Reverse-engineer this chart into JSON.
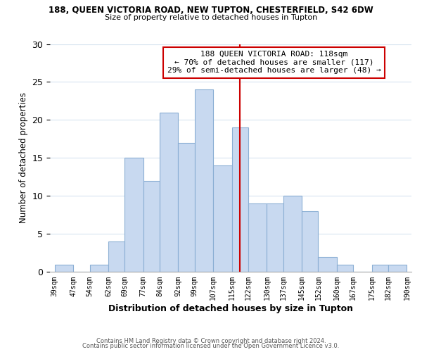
{
  "title1": "188, QUEEN VICTORIA ROAD, NEW TUPTON, CHESTERFIELD, S42 6DW",
  "title2": "Size of property relative to detached houses in Tupton",
  "xlabel": "Distribution of detached houses by size in Tupton",
  "ylabel": "Number of detached properties",
  "bin_edges": [
    39,
    47,
    54,
    62,
    69,
    77,
    84,
    92,
    99,
    107,
    115,
    122,
    130,
    137,
    145,
    152,
    160,
    167,
    175,
    182,
    190
  ],
  "bin_labels": [
    "39sqm",
    "47sqm",
    "54sqm",
    "62sqm",
    "69sqm",
    "77sqm",
    "84sqm",
    "92sqm",
    "99sqm",
    "107sqm",
    "115sqm",
    "122sqm",
    "130sqm",
    "137sqm",
    "145sqm",
    "152sqm",
    "160sqm",
    "167sqm",
    "175sqm",
    "182sqm",
    "190sqm"
  ],
  "counts": [
    1,
    0,
    1,
    4,
    15,
    12,
    21,
    17,
    24,
    14,
    19,
    9,
    9,
    10,
    8,
    2,
    1,
    0,
    1,
    1
  ],
  "bar_color": "#c8d9f0",
  "bar_edgecolor": "#8bafd4",
  "vline_x": 118.5,
  "vline_color": "#cc0000",
  "annotation_line1": "188 QUEEN VICTORIA ROAD: 118sqm",
  "annotation_line2": "← 70% of detached houses are smaller (117)",
  "annotation_line3": "29% of semi-detached houses are larger (48) →",
  "annotation_box_color": "#ffffff",
  "annotation_box_edgecolor": "#cc0000",
  "ylim": [
    0,
    30
  ],
  "yticks": [
    0,
    5,
    10,
    15,
    20,
    25,
    30
  ],
  "footer1": "Contains HM Land Registry data © Crown copyright and database right 2024.",
  "footer2": "Contains public sector information licensed under the Open Government Licence v3.0.",
  "bg_color": "#ffffff",
  "grid_color": "#d8e4f0"
}
